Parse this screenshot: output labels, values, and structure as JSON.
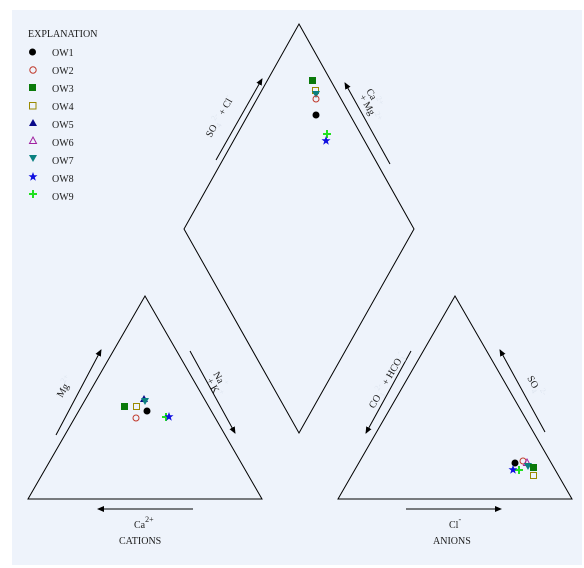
{
  "legend": {
    "title": "EXPLANATION",
    "items": [
      {
        "label": "OW1",
        "symbol": "circle",
        "color": "#000000",
        "fill": true
      },
      {
        "label": "OW2",
        "symbol": "circle",
        "color": "#c0392b",
        "fill": false
      },
      {
        "label": "OW3",
        "symbol": "square",
        "color": "#0a7a0a",
        "fill": true
      },
      {
        "label": "OW4",
        "symbol": "square",
        "color": "#9a8a00",
        "fill": false
      },
      {
        "label": "OW5",
        "symbol": "triangle-up",
        "color": "#0a0a8a",
        "fill": true
      },
      {
        "label": "OW6",
        "symbol": "triangle-up",
        "color": "#a020a0",
        "fill": false
      },
      {
        "label": "OW7",
        "symbol": "triangle-down",
        "color": "#0a8080",
        "fill": true
      },
      {
        "label": "OW8",
        "symbol": "star",
        "color": "#1010e0",
        "fill": true
      },
      {
        "label": "OW9",
        "symbol": "plus",
        "color": "#20e020",
        "fill": true
      }
    ]
  },
  "labels": {
    "diamond_left": "SO",
    "diamond_left_sub": "4",
    "diamond_left_sup": "2-",
    "diamond_left_tail": "+ Cl",
    "diamond_left_tail_sup": "-",
    "diamond_right": "Ca",
    "diamond_right_sup": "2+",
    "diamond_right_tail": "+ Mg",
    "diamond_right_tail_sup": "2+",
    "cation_left": "Mg",
    "cation_left_sup": "2+",
    "cation_right": "Na",
    "cation_right_sup": "+",
    "cation_right_tail": "+ K",
    "cation_right_tail_sup": "+",
    "cation_bottom": "Ca",
    "cation_bottom_sup": "2+",
    "cation_title": "CATIONS",
    "anion_left": "CO",
    "anion_left_sub": "3",
    "anion_left_sup": "2-",
    "anion_left_tail": "+ HCO",
    "anion_left_tail_sub": "3",
    "anion_left_tail_sup": "-",
    "anion_right": "SO",
    "anion_right_sub": "4",
    "anion_right_sup": "2-",
    "anion_bottom": "Cl",
    "anion_bottom_sup": "-",
    "anion_title": "ANIONS"
  }
}
